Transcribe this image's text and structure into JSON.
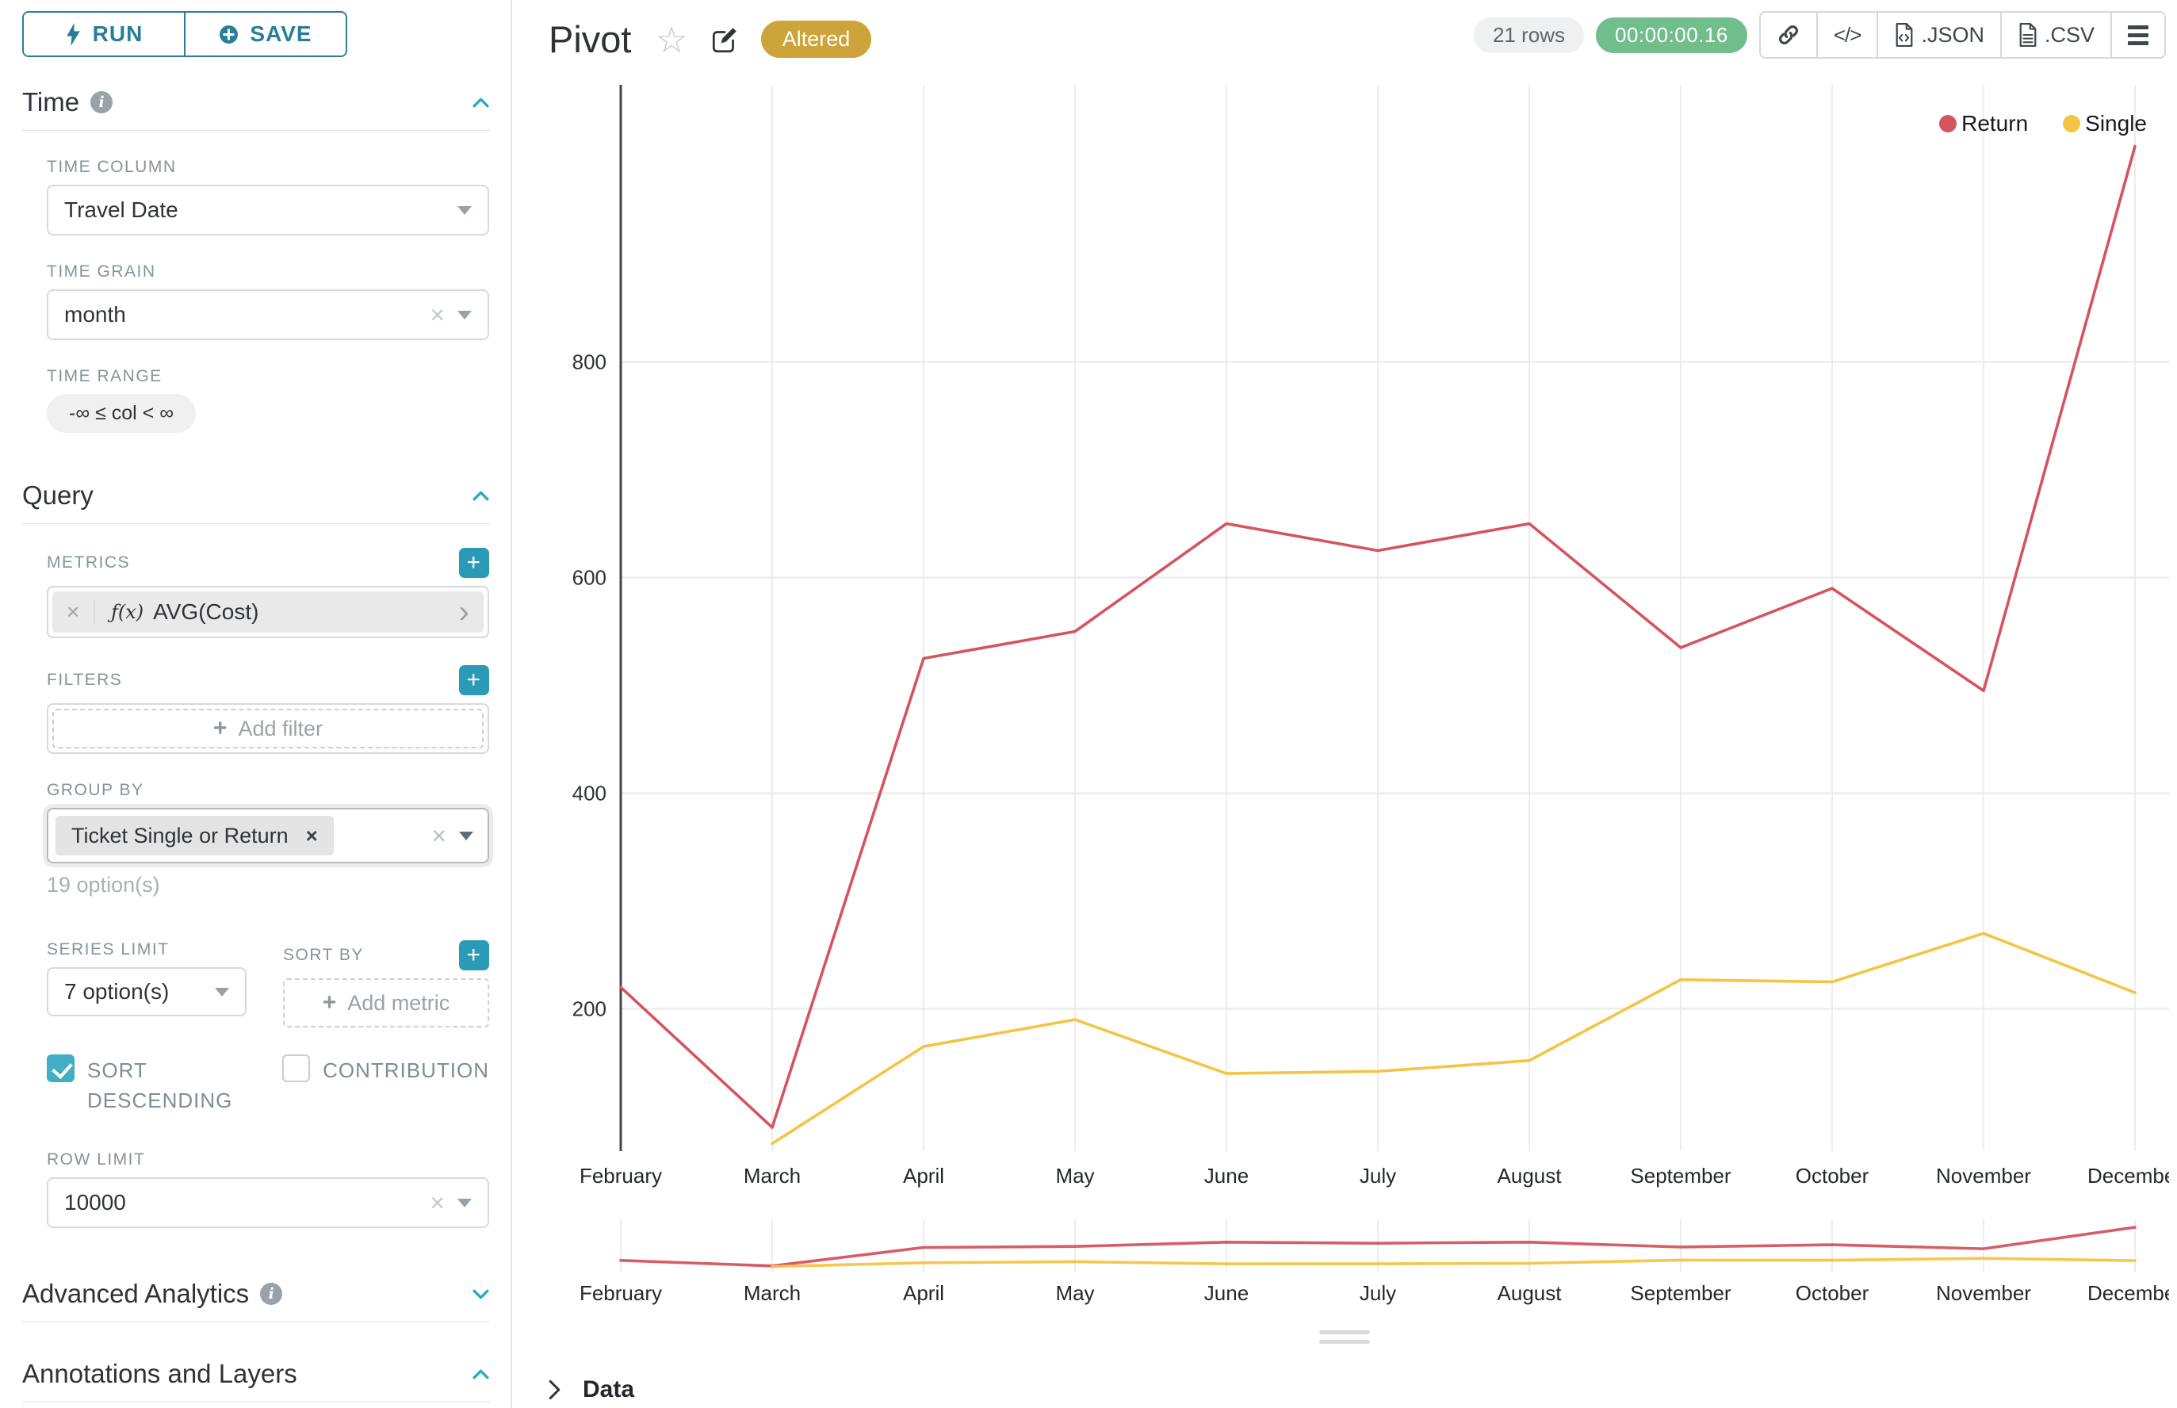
{
  "glyphs": {
    "plus": "+",
    "clear": "×",
    "chip_close": "×",
    "expand": "›",
    "star": "☆",
    "info": "i",
    "code": "</>"
  },
  "toolbar": {
    "run_label": "RUN",
    "save_label": "SAVE"
  },
  "sidebar": {
    "time": {
      "title": "Time",
      "time_column_label": "TIME COLUMN",
      "time_column_value": "Travel Date",
      "time_grain_label": "TIME GRAIN",
      "time_grain_value": "month",
      "time_range_label": "TIME RANGE",
      "time_range_value": "-∞ ≤ col < ∞"
    },
    "query": {
      "title": "Query",
      "metrics_label": "METRICS",
      "metric_fx": "ƒ(x)",
      "metric_value": "AVG(Cost)",
      "filters_label": "FILTERS",
      "add_filter_placeholder": "Add filter",
      "group_by_label": "GROUP BY",
      "group_by_chip": "Ticket Single or Return",
      "group_by_hint": "19 option(s)",
      "series_limit_label": "SERIES LIMIT",
      "series_limit_value": "7 option(s)",
      "sort_by_label": "SORT BY",
      "add_metric_placeholder": "Add metric",
      "sort_descending_label": "SORT DESCENDING",
      "contribution_label": "CONTRIBUTION",
      "row_limit_label": "ROW LIMIT",
      "row_limit_value": "10000"
    },
    "advanced": {
      "title": "Advanced Analytics"
    },
    "annotations": {
      "title": "Annotations and Layers"
    }
  },
  "header": {
    "title": "Pivot",
    "badge": "Altered",
    "rows_pill": "21 rows",
    "timer_pill": "00:00:00.16",
    "export_json_label": ".JSON",
    "export_csv_label": ".CSV"
  },
  "footer": {
    "data_label": "Data"
  },
  "chart_data": {
    "type": "line",
    "title": "Pivot",
    "x": [
      "February",
      "March",
      "April",
      "May",
      "June",
      "July",
      "August",
      "September",
      "October",
      "November",
      "December"
    ],
    "series": [
      {
        "name": "Return",
        "color": "#d4545f",
        "values": [
          220,
          90,
          525,
          550,
          650,
          625,
          650,
          535,
          590,
          495,
          1000
        ]
      },
      {
        "name": "Single",
        "color": "#f4c443",
        "values": [
          null,
          75,
          165,
          190,
          140,
          142,
          152,
          227,
          225,
          270,
          215
        ]
      }
    ],
    "yticks": [
      200,
      400,
      600,
      800
    ],
    "ylim": [
      68,
      1057
    ],
    "xlabel": "",
    "ylabel": "",
    "grid": true,
    "legend_position": "top-right",
    "has_range_selector": true
  }
}
